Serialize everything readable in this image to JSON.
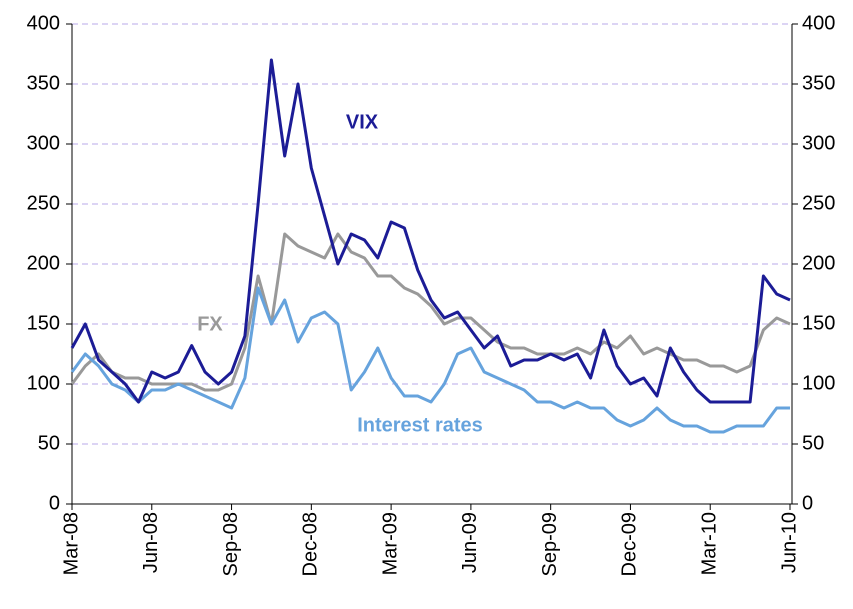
{
  "chart_data": {
    "type": "line",
    "categories": [
      "Mar-08",
      null,
      null,
      null,
      null,
      null,
      "Jun-08",
      null,
      null,
      null,
      null,
      null,
      "Sep-08",
      null,
      null,
      null,
      null,
      null,
      "Dec-08",
      null,
      null,
      null,
      null,
      null,
      "Mar-09",
      null,
      null,
      null,
      null,
      null,
      "Jun-09",
      null,
      null,
      null,
      null,
      null,
      "Sep-09",
      null,
      null,
      null,
      null,
      null,
      "Dec-09",
      null,
      null,
      null,
      null,
      null,
      "Mar-10",
      null,
      null,
      null,
      null,
      null,
      "Jun-10"
    ],
    "series": [
      {
        "name": "VIX",
        "color": "#1c1c96",
        "values": [
          130,
          150,
          120,
          110,
          100,
          85,
          110,
          105,
          110,
          132,
          110,
          100,
          110,
          140,
          250,
          370,
          290,
          350,
          280,
          240,
          200,
          225,
          220,
          205,
          235,
          230,
          195,
          170,
          155,
          160,
          145,
          130,
          140,
          115,
          120,
          120,
          125,
          120,
          125,
          105,
          145,
          115,
          100,
          105,
          90,
          130,
          110,
          95,
          85,
          85,
          85,
          85,
          190,
          175,
          170
        ]
      },
      {
        "name": "FX",
        "color": "#999999",
        "values": [
          100,
          115,
          125,
          110,
          105,
          105,
          100,
          100,
          100,
          100,
          95,
          95,
          100,
          130,
          190,
          150,
          225,
          215,
          210,
          205,
          225,
          210,
          205,
          190,
          190,
          180,
          175,
          165,
          150,
          155,
          155,
          145,
          135,
          130,
          130,
          125,
          125,
          125,
          130,
          125,
          135,
          130,
          140,
          125,
          130,
          125,
          120,
          120,
          115,
          115,
          110,
          115,
          145,
          155,
          150
        ]
      },
      {
        "name": "Interest rates",
        "color": "#66a3dd",
        "values": [
          110,
          125,
          115,
          100,
          95,
          85,
          95,
          95,
          100,
          95,
          90,
          85,
          80,
          105,
          180,
          150,
          170,
          135,
          155,
          160,
          150,
          95,
          110,
          130,
          105,
          90,
          90,
          85,
          100,
          125,
          130,
          110,
          105,
          100,
          95,
          85,
          85,
          80,
          85,
          80,
          80,
          70,
          65,
          70,
          80,
          70,
          65,
          65,
          60,
          60,
          65,
          65,
          65,
          80,
          80
        ]
      }
    ],
    "ylim": [
      0,
      400
    ],
    "yticks": [
      0,
      50,
      100,
      150,
      200,
      250,
      300,
      350,
      400
    ],
    "y2lim": [
      0,
      400
    ],
    "y2ticks": [
      0,
      50,
      100,
      150,
      200,
      250,
      300,
      350,
      400
    ],
    "grid": true
  }
}
